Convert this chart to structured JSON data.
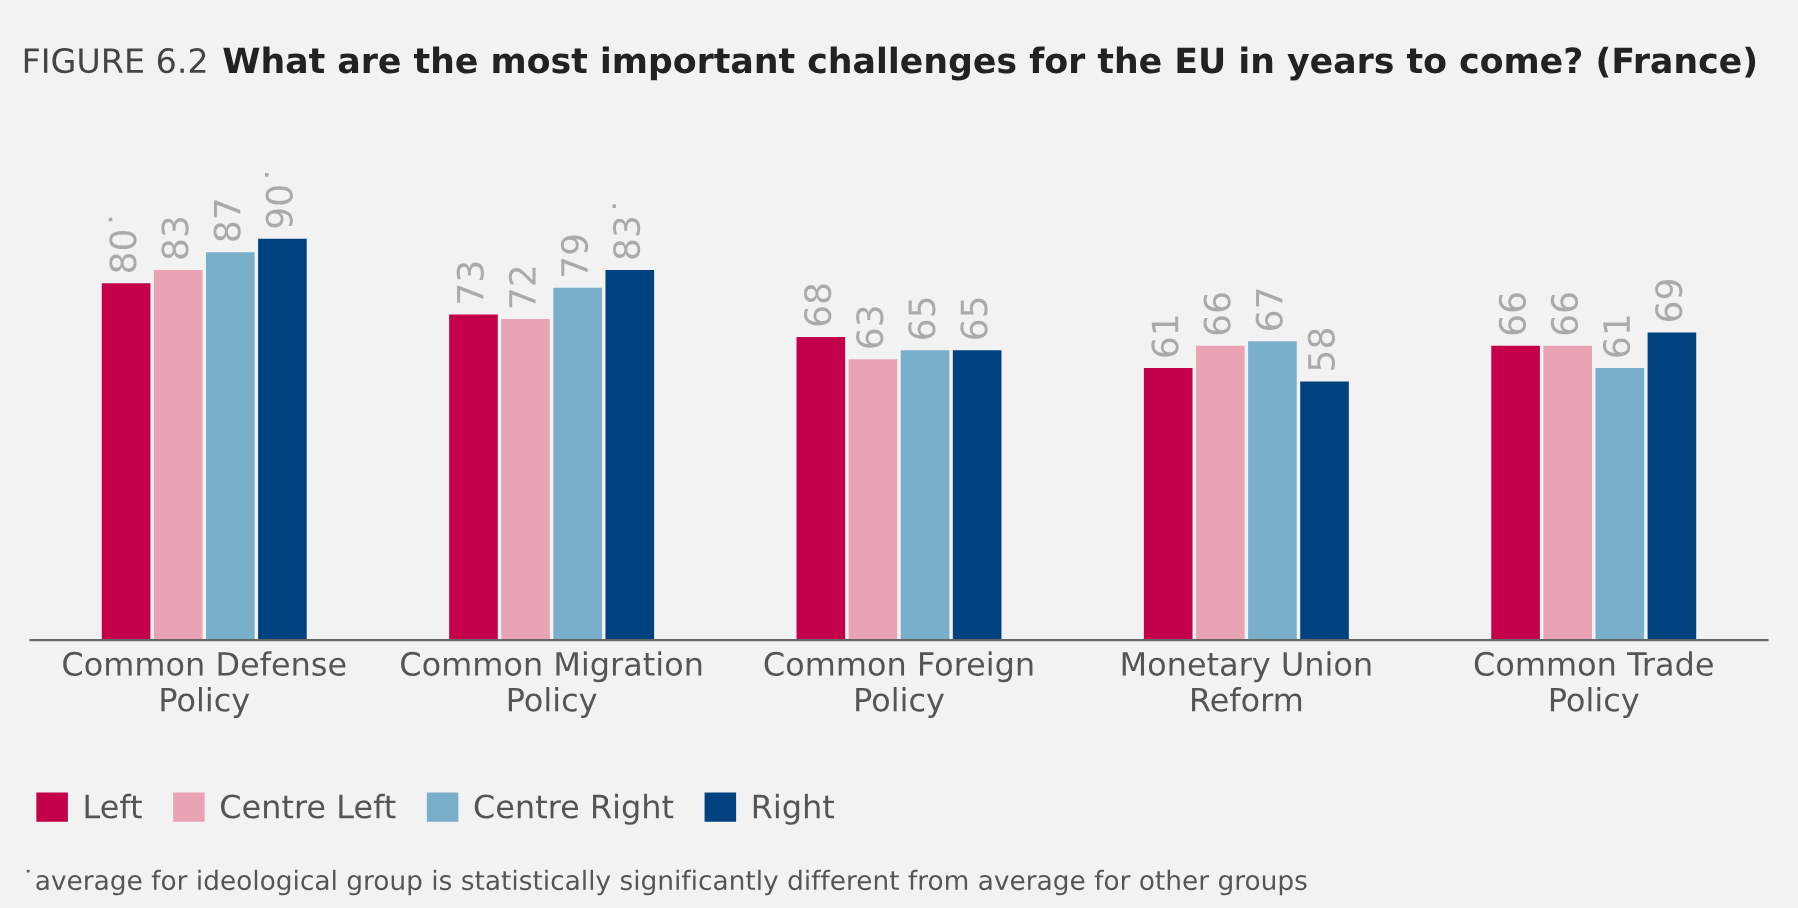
{
  "chart_data": {
    "type": "bar",
    "subtitle": "FIGURE 6.2",
    "title": "What are the most important challenges for the EU in years to come? (France)",
    "categories": [
      "Common Defense\nPolicy",
      "Common Migration\nPolicy",
      "Common Foreign\nPolicy",
      "Monetary Union\nReform",
      "Common Trade\nPolicy"
    ],
    "series": [
      {
        "name": "Left",
        "color": "#c4004a",
        "values": [
          80,
          73,
          68,
          61,
          66
        ],
        "value_labels": [
          "80˙",
          "73",
          "68",
          "61",
          "66"
        ]
      },
      {
        "name": "Centre Left",
        "color": "#e8a4b4",
        "values": [
          83,
          72,
          63,
          66,
          66
        ],
        "value_labels": [
          "83",
          "72",
          "63",
          "66",
          "66"
        ]
      },
      {
        "name": "Centre Right",
        "color": "#79afcb",
        "values": [
          87,
          79,
          65,
          67,
          61
        ],
        "value_labels": [
          "87",
          "79",
          "65",
          "67",
          "61"
        ]
      },
      {
        "name": "Right",
        "color": "#00427f",
        "values": [
          90,
          83,
          65,
          58,
          69
        ],
        "value_labels": [
          "90˙",
          "83˙",
          "65",
          "58",
          "69"
        ]
      }
    ],
    "grid": false,
    "legend": "bottom left",
    "annotations": [
      "˙average for ideological group is statistically significantly different from average for other groups"
    ]
  }
}
